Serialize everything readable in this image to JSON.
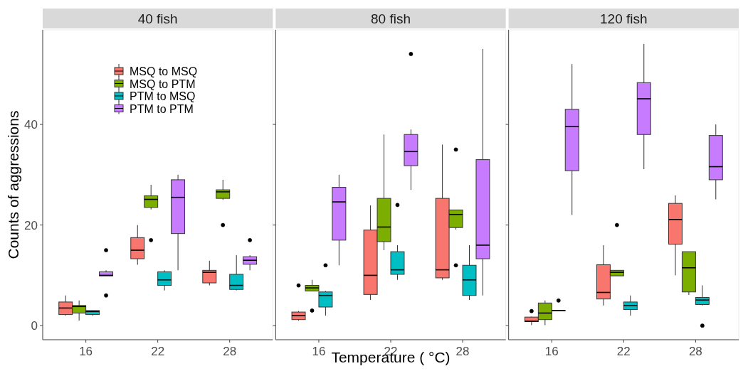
{
  "chart_data": [
    {
      "type": "box",
      "title": "40 fish",
      "ylabel": "Counts of aggressions",
      "categories": [
        "16",
        "22",
        "28"
      ],
      "ylim": [
        -2.8,
        58.8
      ],
      "yticks": [
        0,
        20,
        40
      ],
      "legend": "top left",
      "series": [
        {
          "name": "MSQ to MSQ",
          "color": "#f8766d",
          "boxes": [
            {
              "low": 2,
              "q1": 2.2,
              "median": 3.5,
              "q3": 4.7,
              "high": 6
            },
            {
              "low": 12.1,
              "q1": 13.3,
              "median": 15,
              "q3": 17.5,
              "high": 20
            },
            {
              "low": 8,
              "q1": 8.5,
              "median": 10.6,
              "q3": 11,
              "high": 12.9
            }
          ]
        },
        {
          "name": "MSQ to PTM",
          "color": "#7cae00",
          "boxes": [
            {
              "low": 1,
              "q1": 2.5,
              "median": 3.8,
              "q3": 4,
              "high": 5
            },
            {
              "low": 23.1,
              "q1": 23.5,
              "median": 25.1,
              "q3": 25.8,
              "high": 28,
              "outliers": [
                17
              ]
            },
            {
              "low": 25,
              "q1": 25.3,
              "median": 26.6,
              "q3": 27,
              "high": 29,
              "outliers": [
                20
              ]
            }
          ]
        },
        {
          "name": "PTM to MSQ",
          "color": "#00bfc4",
          "boxes": [
            {
              "low": 2,
              "q1": 2.2,
              "median": 2.8,
              "q3": 3,
              "high": 3
            },
            {
              "low": 7,
              "q1": 8,
              "median": 9.1,
              "q3": 10.7,
              "high": 11
            },
            {
              "low": 7,
              "q1": 7.2,
              "median": 8,
              "q3": 10.2,
              "high": 14
            }
          ]
        },
        {
          "name": "PTM to PTM",
          "color": "#c77cff",
          "boxes": [
            {
              "low": 9.9,
              "q1": 9.9,
              "median": 10,
              "q3": 10.7,
              "high": 11,
              "outliers": [
                15,
                6
              ]
            },
            {
              "low": 11,
              "q1": 18.3,
              "median": 25.5,
              "q3": 29,
              "high": 30
            },
            {
              "low": 11,
              "q1": 12.2,
              "median": 13,
              "q3": 13.7,
              "high": 14,
              "outliers": [
                17
              ]
            }
          ]
        }
      ]
    },
    {
      "type": "box",
      "title": "80 fish",
      "xlabel": "Temperature ( °C)",
      "categories": [
        "16",
        "22",
        "28"
      ],
      "ylim": [
        -2.8,
        58.8
      ],
      "yticks": [
        0,
        20,
        40
      ],
      "tick_labels": "x",
      "series": [
        {
          "color": "#f8766d",
          "boxes": [
            {
              "low": 1,
              "q1": 1.2,
              "median": 2,
              "q3": 2.7,
              "high": 2.9,
              "outliers": [
                8
              ]
            },
            {
              "low": 5.1,
              "q1": 6.2,
              "median": 10,
              "q3": 19,
              "high": 23.9
            },
            {
              "low": 9.1,
              "q1": 9.5,
              "median": 11.1,
              "q3": 25.3,
              "high": 36
            }
          ]
        },
        {
          "color": "#7cae00",
          "boxes": [
            {
              "low": 6.9,
              "q1": 6.9,
              "median": 7.5,
              "q3": 8,
              "high": 9.1,
              "outliers": [
                3
              ]
            },
            {
              "low": 15,
              "q1": 16.7,
              "median": 19.6,
              "q3": 25.3,
              "high": 38
            },
            {
              "low": 19.1,
              "q1": 19.5,
              "median": 22.1,
              "q3": 23,
              "high": 23,
              "outliers": [
                35,
                12
              ]
            }
          ]
        },
        {
          "color": "#00bfc4",
          "boxes": [
            {
              "low": 2,
              "q1": 3.7,
              "median": 6,
              "q3": 6.7,
              "high": 6.9,
              "outliers": [
                12
              ]
            },
            {
              "low": 9.1,
              "q1": 10.2,
              "median": 11.1,
              "q3": 14.7,
              "high": 16,
              "outliers": [
                24
              ]
            },
            {
              "low": 5.1,
              "q1": 6,
              "median": 9.1,
              "q3": 12,
              "high": 16
            }
          ]
        },
        {
          "color": "#c77cff",
          "boxes": [
            {
              "low": 12,
              "q1": 17,
              "median": 24.6,
              "q3": 27.5,
              "high": 30
            },
            {
              "low": 27,
              "q1": 31.8,
              "median": 34.6,
              "q3": 38,
              "high": 39,
              "outliers": [
                54
              ]
            },
            {
              "low": 6,
              "q1": 13.3,
              "median": 16,
              "q3": 33,
              "high": 55
            }
          ]
        }
      ]
    },
    {
      "type": "box",
      "title": "120 fish",
      "categories": [
        "16",
        "22",
        "28"
      ],
      "ylim": [
        -2.8,
        58.8
      ],
      "yticks": [
        0,
        20,
        40
      ],
      "tick_labels": "x",
      "series": [
        {
          "color": "#f8766d",
          "boxes": [
            {
              "low": 0.1,
              "q1": 0.8,
              "median": 0.9,
              "q3": 1.7,
              "high": 1.8,
              "outliers": [
                2.9
              ]
            },
            {
              "low": 4,
              "q1": 5.3,
              "median": 6.6,
              "q3": 12.1,
              "high": 16
            },
            {
              "low": 10,
              "q1": 16.2,
              "median": 21.1,
              "q3": 24.3,
              "high": 25.9
            }
          ]
        },
        {
          "color": "#7cae00",
          "boxes": [
            {
              "low": 0.1,
              "q1": 1.2,
              "median": 2.5,
              "q3": 4.5,
              "high": 5
            },
            {
              "low": 9.9,
              "q1": 9.9,
              "median": 10.6,
              "q3": 11,
              "high": 11,
              "outliers": [
                20
              ]
            },
            {
              "low": 6.1,
              "q1": 6.7,
              "median": 11.5,
              "q3": 14.7,
              "high": 14.7
            }
          ]
        },
        {
          "color": "#00bfc4",
          "boxes": [
            {
              "low": 3,
              "q1": 3,
              "median": 3,
              "q3": 3,
              "high": 3,
              "outliers": [
                5
              ]
            },
            {
              "low": 2,
              "q1": 3.2,
              "median": 4,
              "q3": 4.7,
              "high": 6
            },
            {
              "low": 4,
              "q1": 4.2,
              "median": 5.1,
              "q3": 5.6,
              "high": 8,
              "outliers": [
                0
              ]
            }
          ]
        },
        {
          "color": "#c77cff",
          "boxes": [
            {
              "low": 22,
              "q1": 30.8,
              "median": 39.6,
              "q3": 43,
              "high": 52
            },
            {
              "low": 31.1,
              "q1": 38,
              "median": 45.1,
              "q3": 48.3,
              "high": 56
            },
            {
              "low": 25.1,
              "q1": 29,
              "median": 31.6,
              "q3": 37.8,
              "high": 40
            }
          ]
        }
      ]
    }
  ]
}
